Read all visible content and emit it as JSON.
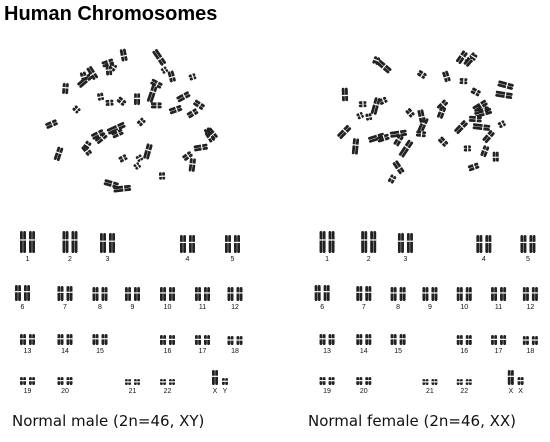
{
  "title": "Human Chromosomes",
  "chromosome_color": "#222222",
  "karyotypes": [
    {
      "id": "male",
      "caption": "Normal male (2n=46, XY)",
      "labels": [
        "1",
        "2",
        "3",
        "4",
        "5",
        "6",
        "7",
        "8",
        "9",
        "10",
        "11",
        "12",
        "13",
        "14",
        "15",
        "16",
        "17",
        "18",
        "19",
        "20",
        "21",
        "22",
        "X",
        "Y"
      ]
    },
    {
      "id": "female",
      "caption": "Normal female (2n=46, XX)",
      "labels": [
        "1",
        "2",
        "3",
        "4",
        "5",
        "6",
        "7",
        "8",
        "9",
        "10",
        "11",
        "12",
        "13",
        "14",
        "15",
        "16",
        "17",
        "18",
        "19",
        "20",
        "21",
        "22",
        "X",
        "X"
      ]
    }
  ]
}
